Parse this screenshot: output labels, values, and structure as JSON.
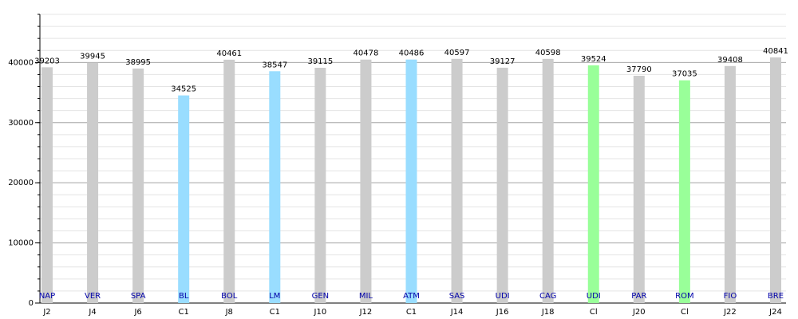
{
  "chart_data": {
    "type": "bar",
    "categories": [
      "J2",
      "J4",
      "J6",
      "C1",
      "J8",
      "C1",
      "J10",
      "J12",
      "C1",
      "J14",
      "J16",
      "J18",
      "Cl",
      "J20",
      "Cl",
      "J22",
      "J24"
    ],
    "bar_labels": [
      "NAP",
      "VER",
      "SPA",
      "BL",
      "BOL",
      "LM",
      "GEN",
      "MIL",
      "ATM",
      "SAS",
      "UDI",
      "CAG",
      "UDI",
      "PAR",
      "ROM",
      "FIO",
      "BRE"
    ],
    "values": [
      39203,
      39945,
      38995,
      34525,
      40461,
      38547,
      39115,
      40478,
      40486,
      40597,
      39127,
      40598,
      39524,
      37790,
      37035,
      39408,
      40841
    ],
    "colors": [
      "#cccccc",
      "#cccccc",
      "#cccccc",
      "#99ddff",
      "#cccccc",
      "#99ddff",
      "#cccccc",
      "#cccccc",
      "#99ddff",
      "#cccccc",
      "#cccccc",
      "#cccccc",
      "#99ff99",
      "#cccccc",
      "#99ff99",
      "#cccccc",
      "#cccccc"
    ],
    "ylim": [
      0,
      48000
    ],
    "yticks": [
      0,
      10000,
      20000,
      30000,
      40000
    ],
    "grid": true
  }
}
